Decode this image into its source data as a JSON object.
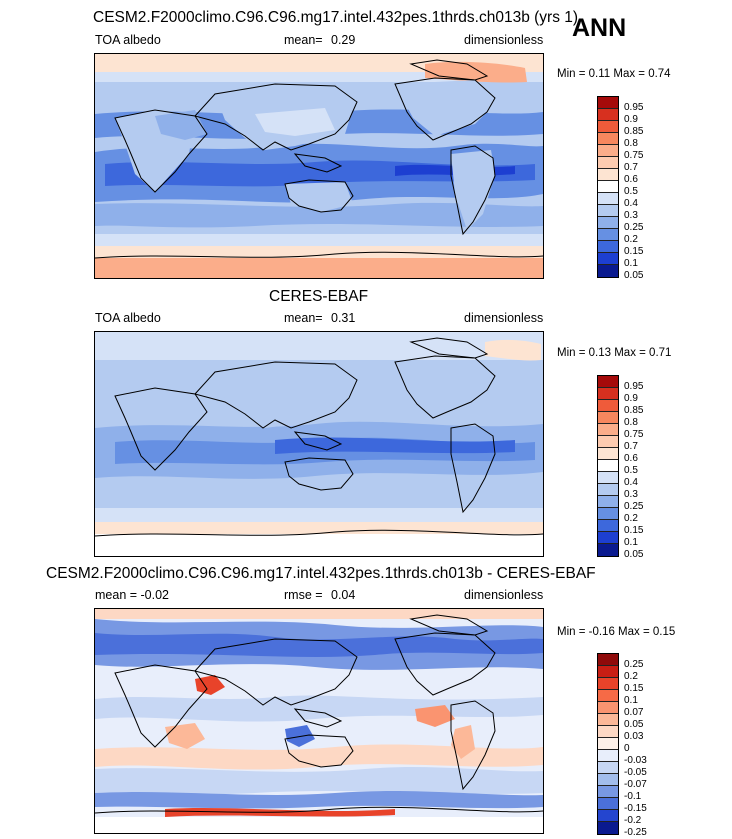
{
  "season": "ANN",
  "panels": [
    {
      "title": "CESM2.F2000climo.C96.C96.mg17.intel.432pes.1thrds.ch013b (yrs 1)",
      "left": "TOA albedo",
      "mid_label": "mean=",
      "mid_value": "0.29",
      "right": "dimensionless",
      "minmax": "Min =  0.11 Max =  0.74",
      "levels": [
        "0.95",
        "0.9",
        "0.85",
        "0.8",
        "0.75",
        "0.7",
        "0.6",
        "0.5",
        "0.4",
        "0.3",
        "0.25",
        "0.2",
        "0.15",
        "0.1",
        "0.05"
      ],
      "colors": [
        "#a50a0a",
        "#d7301f",
        "#ef5b3a",
        "#f7875e",
        "#fbad8a",
        "#fdcbb0",
        "#fde4d2",
        "#ffffff",
        "#d5e2f7",
        "#b4cbf0",
        "#8fb0ea",
        "#6690e3",
        "#3d68dc",
        "#1d3fd1",
        "#0a1a8f"
      ]
    },
    {
      "title": "CERES-EBAF",
      "left": "TOA albedo",
      "mid_label": "mean=",
      "mid_value": "0.31",
      "right": "dimensionless",
      "minmax": "Min =  0.13 Max =  0.71",
      "levels": [
        "0.95",
        "0.9",
        "0.85",
        "0.8",
        "0.75",
        "0.7",
        "0.6",
        "0.5",
        "0.4",
        "0.3",
        "0.25",
        "0.2",
        "0.15",
        "0.1",
        "0.05"
      ],
      "colors": [
        "#a50a0a",
        "#d7301f",
        "#ef5b3a",
        "#f7875e",
        "#fbad8a",
        "#fdcbb0",
        "#fde4d2",
        "#ffffff",
        "#d5e2f7",
        "#b4cbf0",
        "#8fb0ea",
        "#6690e3",
        "#3d68dc",
        "#1d3fd1",
        "#0a1a8f"
      ]
    },
    {
      "title": "CESM2.F2000climo.C96.C96.mg17.intel.432pes.1thrds.ch013b - CERES-EBAF",
      "left": "mean =  -0.02",
      "mid_label": "rmse =",
      "mid_value": "0.04",
      "right": "dimensionless",
      "minmax": "Min =  -0.16 Max =  0.15",
      "levels": [
        "0.25",
        "0.2",
        "0.15",
        "0.1",
        "0.07",
        "0.05",
        "0.03",
        "0",
        "-0.03",
        "-0.05",
        "-0.07",
        "-0.1",
        "-0.15",
        "-0.2",
        "-0.25"
      ],
      "colors": [
        "#8f0a0a",
        "#c81e14",
        "#e8432a",
        "#f66a46",
        "#fa9470",
        "#fcb898",
        "#fdd8c4",
        "#fdf0e8",
        "#e8eefb",
        "#c7d7f4",
        "#a2bdec",
        "#7898e3",
        "#4b70da",
        "#2445cf",
        "#0a1a8f"
      ]
    }
  ],
  "colors": {
    "ocean_base": "#b4cbf0",
    "coast": "#000000"
  }
}
